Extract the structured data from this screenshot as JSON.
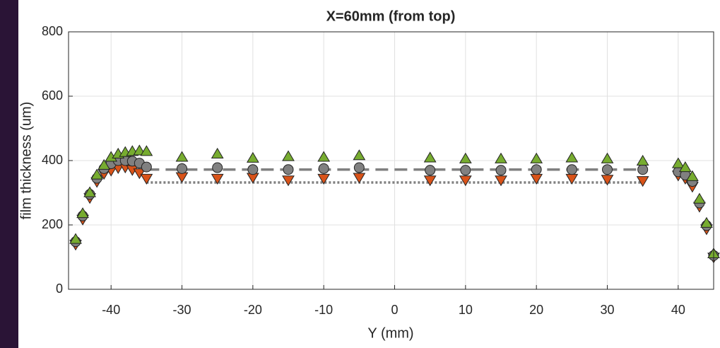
{
  "chart_data": {
    "type": "scatter",
    "title": "X=60mm (from top)",
    "x_label": "Y (mm)",
    "y_label": "film thickness (um)",
    "x": [
      -45,
      -44,
      -43,
      -42,
      -41,
      -40,
      -39,
      -38,
      -37,
      -36,
      -35,
      -30,
      -25,
      -20,
      -15,
      -10,
      -5,
      5,
      10,
      15,
      20,
      25,
      30,
      35,
      40,
      41,
      42,
      43,
      44,
      45
    ],
    "series": [
      {
        "color": "#d95319",
        "marker": "v",
        "values": [
          140,
          218,
          285,
          335,
          360,
          370,
          378,
          380,
          372,
          362,
          345,
          350,
          345,
          348,
          340,
          345,
          348,
          340,
          340,
          340,
          345,
          345,
          342,
          338,
          355,
          345,
          320,
          258,
          188,
          100
        ]
      },
      {
        "color": "#808080",
        "marker": "o",
        "values": [
          148,
          228,
          295,
          345,
          375,
          390,
          400,
          400,
          398,
          392,
          380,
          375,
          378,
          372,
          372,
          375,
          378,
          370,
          370,
          370,
          372,
          372,
          372,
          372,
          365,
          355,
          335,
          268,
          198,
          105
        ]
      },
      {
        "color": "#77ac30",
        "marker": "^",
        "values": [
          155,
          235,
          300,
          355,
          385,
          410,
          420,
          425,
          428,
          430,
          428,
          410,
          420,
          407,
          412,
          410,
          415,
          408,
          405,
          405,
          405,
          408,
          405,
          398,
          390,
          378,
          350,
          280,
          205,
          110
        ]
      }
    ],
    "lines": [
      {
        "x": [
          -35,
          35
        ],
        "y": [
          372,
          372
        ],
        "color": "#808080",
        "style": "dashed"
      },
      {
        "x": [
          -35,
          35
        ],
        "y": [
          332,
          332
        ],
        "color": "#808080",
        "style": "dotted"
      }
    ],
    "xlim": [
      -46,
      45
    ],
    "ylim": [
      0,
      800
    ],
    "xticks": [
      -40,
      -30,
      -20,
      -10,
      0,
      10,
      20,
      30,
      40
    ],
    "yticks": [
      0,
      200,
      400,
      600,
      800
    ],
    "grid": true
  }
}
